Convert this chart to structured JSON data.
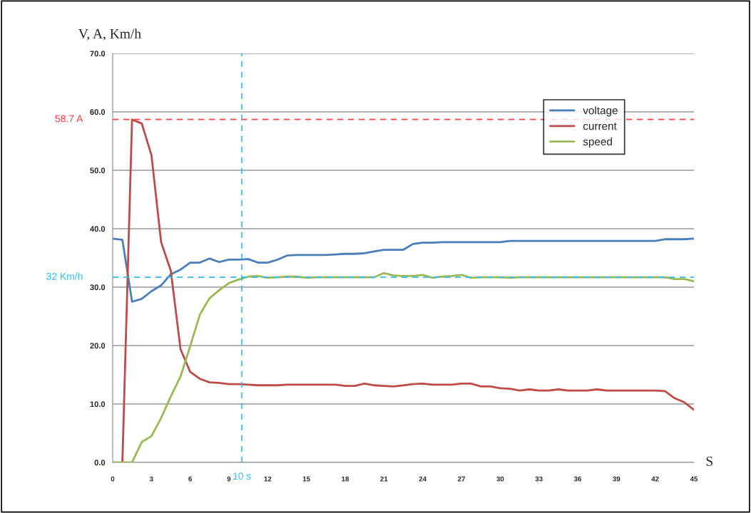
{
  "chart_data": {
    "type": "line",
    "ylabel": "V, A, Km/h",
    "xlabel": "S",
    "x": [
      0,
      0.75,
      1.5,
      2.25,
      3,
      3.75,
      4.5,
      5.25,
      6,
      6.75,
      7.5,
      8.25,
      9,
      9.75,
      10.5,
      11.25,
      12,
      12.75,
      13.5,
      14.25,
      15,
      15.75,
      16.5,
      17.25,
      18,
      18.75,
      19.5,
      20.25,
      21,
      21.75,
      22.5,
      23.25,
      24,
      24.75,
      25.5,
      26.25,
      27,
      27.75,
      28.5,
      29.25,
      30,
      30.75,
      31.5,
      32.25,
      33,
      33.75,
      34.5,
      35.25,
      36,
      36.75,
      37.5,
      38.25,
      39,
      39.75,
      40.5,
      41.25,
      42,
      42.75,
      43.5,
      44.25,
      45
    ],
    "series": [
      {
        "name": "voltage",
        "color": "#4a7ebb",
        "values": [
          38.3,
          38.1,
          27.5,
          28.0,
          29.3,
          30.3,
          32.2,
          33.0,
          34.2,
          34.2,
          34.9,
          34.3,
          34.7,
          34.7,
          34.8,
          34.2,
          34.2,
          34.7,
          35.4,
          35.5,
          35.5,
          35.5,
          35.5,
          35.6,
          35.7,
          35.7,
          35.8,
          36.1,
          36.4,
          36.4,
          36.4,
          37.4,
          37.6,
          37.6,
          37.7,
          37.7,
          37.7,
          37.7,
          37.7,
          37.7,
          37.7,
          37.9,
          37.9,
          37.9,
          37.9,
          37.9,
          37.9,
          37.9,
          37.9,
          37.9,
          37.9,
          37.9,
          37.9,
          37.9,
          37.9,
          37.9,
          37.9,
          38.2,
          38.2,
          38.2,
          38.3
        ]
      },
      {
        "name": "current",
        "color": "#be4b48",
        "values": [
          null,
          0,
          58.7,
          58.0,
          52.6,
          37.7,
          32.8,
          19.4,
          15.5,
          14.3,
          13.7,
          13.6,
          13.4,
          13.4,
          13.3,
          13.2,
          13.2,
          13.2,
          13.3,
          13.3,
          13.3,
          13.3,
          13.3,
          13.3,
          13.1,
          13.1,
          13.5,
          13.2,
          13.1,
          13.0,
          13.2,
          13.4,
          13.5,
          13.3,
          13.3,
          13.3,
          13.5,
          13.5,
          13.0,
          13.0,
          12.7,
          12.6,
          12.3,
          12.5,
          12.3,
          12.3,
          12.5,
          12.3,
          12.3,
          12.3,
          12.5,
          12.3,
          12.3,
          12.3,
          12.3,
          12.3,
          12.3,
          12.2,
          11.0,
          10.3,
          9.0
        ]
      },
      {
        "name": "speed",
        "color": "#98b954",
        "values": [
          0,
          0,
          0,
          3.5,
          4.5,
          7.6,
          11.3,
          14.7,
          19.9,
          25.3,
          28.1,
          29.5,
          30.7,
          31.3,
          31.8,
          31.9,
          31.6,
          31.7,
          31.8,
          31.8,
          31.6,
          31.7,
          31.7,
          31.7,
          31.7,
          31.7,
          31.7,
          31.7,
          32.4,
          32.0,
          31.9,
          31.9,
          32.1,
          31.6,
          31.8,
          31.9,
          32.1,
          31.6,
          31.7,
          31.7,
          31.7,
          31.6,
          31.7,
          31.7,
          31.7,
          31.7,
          31.7,
          31.7,
          31.7,
          31.7,
          31.7,
          31.7,
          31.7,
          31.7,
          31.7,
          31.7,
          31.7,
          31.7,
          31.4,
          31.4,
          31.0
        ]
      }
    ],
    "xlim": [
      0,
      45
    ],
    "xticks": [
      0,
      3,
      6,
      9,
      12,
      15,
      18,
      21,
      24,
      27,
      30,
      33,
      36,
      39,
      42,
      45
    ],
    "ylim": [
      0,
      70
    ],
    "yticks": [
      {
        "value": 0,
        "label": "0.0"
      },
      {
        "value": 10,
        "label": "10.0"
      },
      {
        "value": 20,
        "label": "20.0"
      },
      {
        "value": 30,
        "label": "30.0"
      },
      {
        "value": 40,
        "label": "40.0"
      },
      {
        "value": 50,
        "label": "50.0"
      },
      {
        "value": 60,
        "label": "60.0"
      },
      {
        "value": 70,
        "label": "70.0"
      }
    ],
    "ref_lines": [
      {
        "axis": "y",
        "value": 58.7,
        "label": "58.7 A",
        "color": "#ff4040",
        "line_style": "dashed"
      },
      {
        "axis": "y",
        "value": 31.7,
        "label": "32 Km/h",
        "color": "#33bbee",
        "line_style": "dashed"
      },
      {
        "axis": "x",
        "value": 10,
        "label": "10 s",
        "color": "#33bbee",
        "line_style": "dashed"
      }
    ],
    "grid": "y",
    "legend": "top right",
    "marker": "none",
    "line_style": "solid"
  }
}
